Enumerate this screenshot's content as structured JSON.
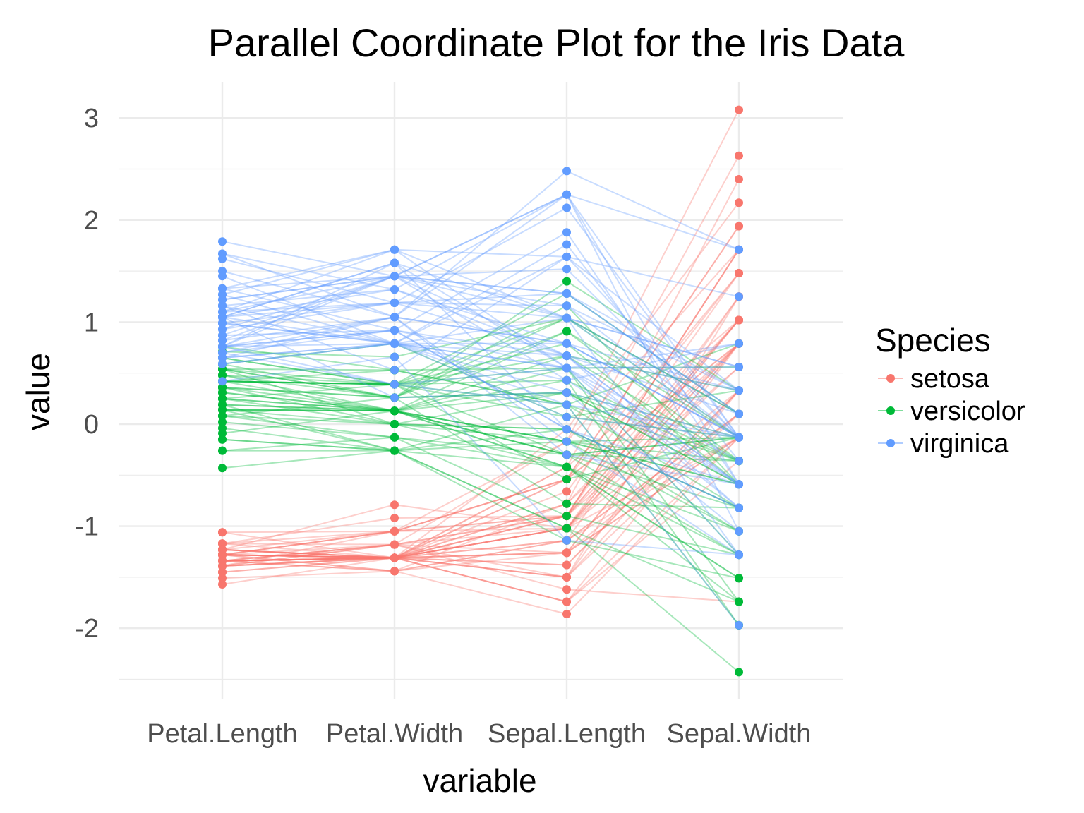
{
  "chart_data": {
    "type": "line",
    "subtype": "parallel-coordinates",
    "title": "Parallel Coordinate Plot for the Iris Data",
    "xlabel": "variable",
    "ylabel": "value",
    "ylim": [
      -2.55,
      3.35
    ],
    "yticks": [
      -2,
      -1,
      0,
      1,
      2,
      3
    ],
    "ytick_labels": [
      "-2",
      "-1",
      "0",
      "1",
      "2",
      "3"
    ],
    "categories": [
      "Petal.Length",
      "Petal.Width",
      "Sepal.Length",
      "Sepal.Width"
    ],
    "grid": true,
    "legend": {
      "title": "Species",
      "position": "right",
      "entries": [
        {
          "name": "setosa",
          "color": "#F8766D"
        },
        {
          "name": "versicolor",
          "color": "#00BA38"
        },
        {
          "name": "virginica",
          "color": "#619CFF"
        }
      ]
    },
    "series": [
      {
        "name": "setosa",
        "color": "#F8766D",
        "lines": [
          [
            -1.34,
            -1.31,
            -0.9,
            1.02
          ],
          [
            -1.34,
            -1.31,
            -1.14,
            -0.13
          ],
          [
            -1.39,
            -1.31,
            -1.38,
            0.33
          ],
          [
            -1.28,
            -1.31,
            -1.5,
            0.1
          ],
          [
            -1.34,
            -1.31,
            -1.02,
            1.25
          ],
          [
            -1.17,
            -1.05,
            -0.54,
            1.94
          ],
          [
            -1.34,
            -1.18,
            -1.5,
            0.79
          ],
          [
            -1.28,
            -1.31,
            -1.02,
            0.79
          ],
          [
            -1.34,
            -1.31,
            -1.74,
            -0.36
          ],
          [
            -1.28,
            -1.44,
            -1.14,
            0.1
          ],
          [
            -1.28,
            -1.31,
            -0.54,
            1.48
          ],
          [
            -1.23,
            -1.31,
            -1.26,
            0.79
          ],
          [
            -1.34,
            -1.44,
            -1.26,
            -0.13
          ],
          [
            -1.51,
            -1.44,
            -1.86,
            -0.13
          ],
          [
            -1.45,
            -1.31,
            -0.05,
            2.17
          ],
          [
            -1.28,
            -1.05,
            -0.17,
            3.08
          ],
          [
            -1.39,
            -1.05,
            -0.54,
            1.94
          ],
          [
            -1.34,
            -1.18,
            -0.9,
            1.02
          ],
          [
            -1.17,
            -1.18,
            -0.17,
            1.71
          ],
          [
            -1.28,
            -1.18,
            -0.9,
            1.71
          ],
          [
            -1.17,
            -1.31,
            -0.54,
            0.79
          ],
          [
            -1.28,
            -1.05,
            -0.9,
            1.48
          ],
          [
            -1.57,
            -1.31,
            -1.5,
            1.25
          ],
          [
            -1.17,
            -0.92,
            -0.9,
            0.56
          ],
          [
            -1.06,
            -1.31,
            -1.26,
            0.79
          ],
          [
            -1.23,
            -1.31,
            -1.02,
            -0.13
          ],
          [
            -1.23,
            -1.05,
            -1.02,
            0.79
          ],
          [
            -1.28,
            -1.31,
            -0.78,
            1.02
          ],
          [
            -1.34,
            -1.31,
            -0.78,
            0.79
          ],
          [
            -1.23,
            -1.31,
            -1.38,
            0.33
          ],
          [
            -1.23,
            -1.31,
            -1.26,
            0.1
          ],
          [
            -1.28,
            -1.05,
            -0.54,
            0.79
          ],
          [
            -1.28,
            -1.44,
            -0.78,
            2.4
          ],
          [
            -1.34,
            -1.31,
            -0.42,
            2.63
          ],
          [
            -1.28,
            -1.31,
            -1.14,
            0.1
          ],
          [
            -1.45,
            -1.31,
            -1.02,
            0.33
          ],
          [
            -1.39,
            -1.31,
            -0.42,
            1.02
          ],
          [
            -1.34,
            -1.44,
            -1.14,
            1.25
          ],
          [
            -1.39,
            -1.31,
            -1.74,
            -0.13
          ],
          [
            -1.28,
            -1.31,
            -0.9,
            0.79
          ],
          [
            -1.39,
            -1.18,
            -1.02,
            1.02
          ],
          [
            -1.39,
            -1.18,
            -1.62,
            -1.74
          ],
          [
            -1.39,
            -1.31,
            -1.74,
            0.33
          ],
          [
            -1.23,
            -0.79,
            -1.02,
            1.02
          ],
          [
            -1.06,
            -1.05,
            -0.9,
            1.71
          ],
          [
            -1.34,
            -1.18,
            -1.26,
            -0.13
          ],
          [
            -1.23,
            -1.31,
            -0.9,
            1.71
          ],
          [
            -1.34,
            -1.31,
            -1.5,
            0.33
          ],
          [
            -1.28,
            -1.31,
            -0.66,
            1.48
          ],
          [
            -1.34,
            -1.31,
            -1.02,
            0.56
          ]
        ]
      },
      {
        "name": "versicolor",
        "color": "#00BA38",
        "lines": [
          [
            0.54,
            0.26,
            1.4,
            0.33
          ],
          [
            0.42,
            0.39,
            0.67,
            0.33
          ],
          [
            0.65,
            0.39,
            1.28,
            0.1
          ],
          [
            0.14,
            0.13,
            -0.42,
            -1.74
          ],
          [
            0.48,
            0.39,
            0.79,
            -0.59
          ],
          [
            0.42,
            0.13,
            -0.17,
            -0.59
          ],
          [
            0.54,
            0.53,
            0.55,
            0.56
          ],
          [
            -0.26,
            -0.26,
            -1.14,
            -1.51
          ],
          [
            0.48,
            0.13,
            0.91,
            -0.36
          ],
          [
            0.08,
            0.26,
            -0.78,
            -0.82
          ],
          [
            -0.15,
            -0.26,
            -1.02,
            -2.43
          ],
          [
            0.25,
            0.39,
            0.07,
            -0.13
          ],
          [
            0.14,
            -0.26,
            0.19,
            -1.97
          ],
          [
            0.54,
            0.26,
            0.31,
            -0.36
          ],
          [
            -0.09,
            0.13,
            -0.3,
            -0.36
          ],
          [
            0.36,
            0.26,
            1.04,
            0.1
          ],
          [
            0.42,
            0.39,
            -0.3,
            -0.13
          ],
          [
            0.19,
            -0.26,
            -0.05,
            -0.82
          ],
          [
            0.42,
            0.39,
            0.43,
            -1.97
          ],
          [
            0.08,
            -0.13,
            -0.3,
            -1.28
          ],
          [
            0.59,
            0.79,
            0.07,
            0.33
          ],
          [
            0.14,
            0.13,
            0.31,
            -0.59
          ],
          [
            0.65,
            0.39,
            0.55,
            -1.28
          ],
          [
            0.54,
            0.0,
            0.31,
            -0.59
          ],
          [
            0.31,
            0.13,
            0.67,
            -0.36
          ],
          [
            0.36,
            0.26,
            0.91,
            -0.13
          ],
          [
            0.59,
            0.26,
            1.16,
            -0.59
          ],
          [
            0.71,
            0.66,
            1.04,
            -0.13
          ],
          [
            0.42,
            0.39,
            0.19,
            -0.36
          ],
          [
            -0.15,
            -0.26,
            -0.17,
            -1.05
          ],
          [
            0.02,
            -0.13,
            -0.42,
            -1.51
          ],
          [
            -0.04,
            -0.26,
            -0.42,
            -1.51
          ],
          [
            0.08,
            0.0,
            -0.05,
            -0.82
          ],
          [
            0.76,
            0.53,
            0.19,
            -0.82
          ],
          [
            0.42,
            0.39,
            -0.54,
            -0.13
          ],
          [
            0.42,
            0.53,
            0.19,
            0.79
          ],
          [
            0.54,
            0.39,
            1.04,
            0.1
          ],
          [
            0.36,
            0.13,
            0.55,
            -1.74
          ],
          [
            0.19,
            0.13,
            -0.3,
            -0.13
          ],
          [
            0.14,
            0.13,
            -0.42,
            -1.28
          ],
          [
            0.36,
            0.0,
            -0.42,
            -1.05
          ],
          [
            0.48,
            0.26,
            0.31,
            -0.13
          ],
          [
            0.14,
            0.0,
            -0.05,
            -1.05
          ],
          [
            -0.43,
            -0.26,
            -1.02,
            -1.74
          ],
          [
            0.25,
            0.13,
            -0.3,
            -0.82
          ],
          [
            0.25,
            0.0,
            -0.17,
            -0.13
          ],
          [
            0.25,
            0.13,
            -0.17,
            -0.36
          ],
          [
            0.31,
            0.13,
            0.43,
            -0.36
          ],
          [
            -0.26,
            -0.13,
            -0.9,
            -1.28
          ],
          [
            0.19,
            0.13,
            -0.17,
            -0.59
          ]
        ]
      },
      {
        "name": "virginica",
        "color": "#619CFF",
        "lines": [
          [
            1.27,
            1.71,
            0.55,
            0.56
          ],
          [
            0.76,
            0.92,
            -0.05,
            -0.82
          ],
          [
            1.22,
            1.45,
            1.52,
            -0.13
          ],
          [
            1.05,
            0.79,
            0.55,
            -0.36
          ],
          [
            1.16,
            1.32,
            0.79,
            -0.13
          ],
          [
            1.62,
            1.19,
            2.12,
            -0.13
          ],
          [
            0.42,
            0.66,
            -1.14,
            -1.28
          ],
          [
            1.45,
            0.79,
            1.76,
            -0.36
          ],
          [
            1.16,
            0.79,
            1.04,
            -1.28
          ],
          [
            1.33,
            1.71,
            1.64,
            1.25
          ],
          [
            0.76,
            1.05,
            0.79,
            0.33
          ],
          [
            0.87,
            0.92,
            0.67,
            -0.82
          ],
          [
            0.99,
            1.19,
            1.16,
            -0.13
          ],
          [
            0.7,
            1.05,
            -0.17,
            -1.28
          ],
          [
            0.76,
            1.58,
            -0.05,
            -0.59
          ],
          [
            0.87,
            1.45,
            0.67,
            0.33
          ],
          [
            0.99,
            0.79,
            0.79,
            -0.13
          ],
          [
            1.67,
            1.32,
            2.25,
            1.71
          ],
          [
            1.79,
            1.45,
            2.25,
            -1.05
          ],
          [
            0.7,
            0.39,
            0.19,
            -1.97
          ],
          [
            1.1,
            1.45,
            1.28,
            0.33
          ],
          [
            0.65,
            1.05,
            -0.3,
            -0.59
          ],
          [
            1.67,
            1.05,
            2.25,
            -0.59
          ],
          [
            0.65,
            0.79,
            0.55,
            -0.82
          ],
          [
            1.1,
            1.19,
            1.04,
            0.56
          ],
          [
            1.27,
            0.79,
            1.64,
            0.33
          ],
          [
            0.59,
            0.79,
            0.43,
            -0.59
          ],
          [
            0.65,
            0.79,
            0.31,
            -0.13
          ],
          [
            1.05,
            1.19,
            0.67,
            -0.59
          ],
          [
            1.16,
            0.53,
            1.64,
            -0.13
          ],
          [
            1.33,
            0.92,
            1.88,
            -0.59
          ],
          [
            1.5,
            1.05,
            2.48,
            1.71
          ],
          [
            1.05,
            1.32,
            0.67,
            -0.59
          ],
          [
            0.76,
            0.39,
            0.55,
            -0.59
          ],
          [
            1.05,
            0.26,
            0.31,
            -1.05
          ],
          [
            1.33,
            1.45,
            2.25,
            -0.13
          ],
          [
            1.05,
            1.58,
            0.55,
            0.79
          ],
          [
            0.99,
            0.79,
            0.67,
            0.1
          ],
          [
            0.59,
            0.79,
            0.19,
            -0.13
          ],
          [
            0.93,
            1.19,
            1.28,
            0.1
          ],
          [
            1.05,
            1.58,
            1.04,
            0.1
          ],
          [
            0.76,
            1.45,
            1.28,
            0.1
          ],
          [
            0.76,
            0.92,
            -0.05,
            -0.82
          ],
          [
            1.22,
            1.45,
            1.16,
            0.33
          ],
          [
            1.1,
            1.71,
            1.04,
            0.56
          ],
          [
            0.82,
            1.45,
            1.04,
            -0.13
          ],
          [
            0.7,
            0.92,
            0.55,
            -1.28
          ],
          [
            0.82,
            1.05,
            0.79,
            -0.13
          ],
          [
            0.93,
            1.45,
            0.43,
            0.79
          ],
          [
            0.76,
            0.79,
            0.07,
            -0.13
          ]
        ]
      }
    ]
  }
}
